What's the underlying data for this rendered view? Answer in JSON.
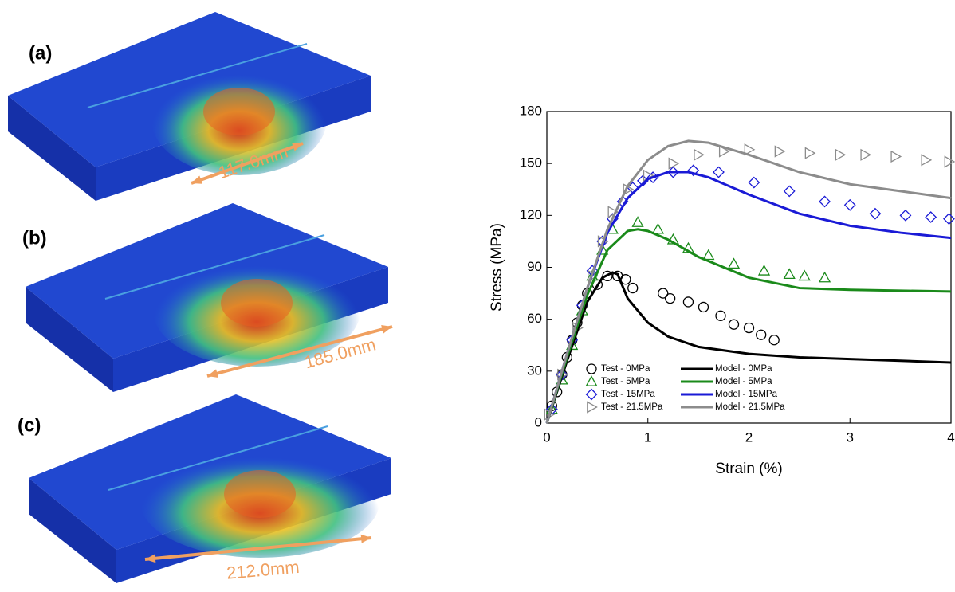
{
  "panels": [
    {
      "label": "(a)",
      "measure": "117.0mm"
    },
    {
      "label": "(b)",
      "measure": "185.0mm"
    },
    {
      "label": "(c)",
      "measure": "212.0mm"
    }
  ],
  "chart_data": {
    "type": "line",
    "xlabel": "Strain (%)",
    "ylabel": "Stress (MPa)",
    "xlim": [
      0,
      4
    ],
    "ylim": [
      0,
      180
    ],
    "xticks": [
      0,
      1,
      2,
      3,
      4
    ],
    "yticks": [
      0,
      30,
      60,
      90,
      120,
      150,
      180
    ],
    "legend": "lower left",
    "series": [
      {
        "name": "Test - 0MPa",
        "color": "#000000",
        "style": "circle",
        "x": [
          0.05,
          0.1,
          0.15,
          0.2,
          0.25,
          0.3,
          0.35,
          0.4,
          0.5,
          0.6,
          0.7,
          0.78,
          0.85,
          1.15,
          1.22,
          1.4,
          1.55,
          1.72,
          1.85,
          2.0,
          2.12,
          2.25
        ],
        "values": [
          10,
          18,
          28,
          38,
          48,
          58,
          68,
          75,
          80,
          85,
          85,
          83,
          78,
          75,
          72,
          70,
          67,
          62,
          57,
          55,
          51,
          48
        ]
      },
      {
        "name": "Test - 5MPa",
        "color": "#1a8a1a",
        "style": "triangle-up",
        "x": [
          0.05,
          0.15,
          0.25,
          0.35,
          0.45,
          0.55,
          0.65,
          0.9,
          1.1,
          1.25,
          1.4,
          1.6,
          1.85,
          2.15,
          2.4,
          2.55,
          2.75
        ],
        "values": [
          8,
          25,
          45,
          65,
          85,
          100,
          112,
          116,
          112,
          106,
          101,
          97,
          92,
          88,
          86,
          85,
          84
        ]
      },
      {
        "name": "Test - 15MPa",
        "color": "#1a1ad6",
        "style": "diamond",
        "x": [
          0.05,
          0.15,
          0.25,
          0.35,
          0.45,
          0.55,
          0.65,
          0.75,
          0.85,
          0.95,
          1.05,
          1.25,
          1.45,
          1.7,
          2.05,
          2.4,
          2.75,
          3.0,
          3.25,
          3.55,
          3.8,
          3.98
        ],
        "values": [
          8,
          28,
          48,
          68,
          88,
          105,
          118,
          128,
          136,
          140,
          142,
          145,
          146,
          145,
          139,
          134,
          128,
          126,
          121,
          120,
          119,
          118
        ]
      },
      {
        "name": "Test - 21.5MPa",
        "color": "#8c8c8c",
        "style": "triangle-right",
        "x": [
          0.02,
          0.15,
          0.3,
          0.45,
          0.55,
          0.65,
          0.8,
          1.0,
          1.25,
          1.5,
          1.75,
          2.0,
          2.3,
          2.6,
          2.9,
          3.15,
          3.45,
          3.75,
          3.98
        ],
        "values": [
          5,
          28,
          55,
          85,
          105,
          122,
          135,
          143,
          150,
          155,
          157,
          158,
          157,
          156,
          155,
          155,
          154,
          152,
          151
        ]
      },
      {
        "name": "Model - 0MPa",
        "color": "#000000",
        "style": "line",
        "x": [
          0,
          0.2,
          0.4,
          0.55,
          0.65,
          0.7,
          0.8,
          1.0,
          1.2,
          1.5,
          2.0,
          2.5,
          3.0,
          3.5,
          4.0
        ],
        "values": [
          0,
          36,
          70,
          84,
          87,
          86,
          72,
          58,
          50,
          44,
          40,
          38,
          37,
          36,
          35
        ]
      },
      {
        "name": "Model - 5MPa",
        "color": "#1a8a1a",
        "style": "line",
        "x": [
          0,
          0.2,
          0.4,
          0.6,
          0.8,
          0.9,
          1.0,
          1.2,
          1.5,
          2.0,
          2.5,
          3.0,
          4.0
        ],
        "values": [
          0,
          38,
          74,
          100,
          111,
          112,
          111,
          106,
          96,
          84,
          78,
          77,
          76
        ]
      },
      {
        "name": "Model - 15MPa",
        "color": "#1a1ad6",
        "style": "line",
        "x": [
          0,
          0.2,
          0.4,
          0.6,
          0.8,
          1.0,
          1.2,
          1.4,
          1.6,
          2.0,
          2.5,
          3.0,
          3.5,
          4.0
        ],
        "values": [
          0,
          40,
          78,
          110,
          130,
          141,
          145,
          145,
          142,
          132,
          121,
          114,
          110,
          107
        ]
      },
      {
        "name": "Model - 21.5MPa",
        "color": "#8c8c8c",
        "style": "line",
        "x": [
          0,
          0.2,
          0.4,
          0.6,
          0.8,
          1.0,
          1.2,
          1.4,
          1.6,
          2.0,
          2.5,
          3.0,
          3.5,
          4.0
        ],
        "values": [
          0,
          40,
          78,
          112,
          137,
          152,
          160,
          163,
          162,
          155,
          145,
          138,
          134,
          130
        ]
      }
    ]
  }
}
